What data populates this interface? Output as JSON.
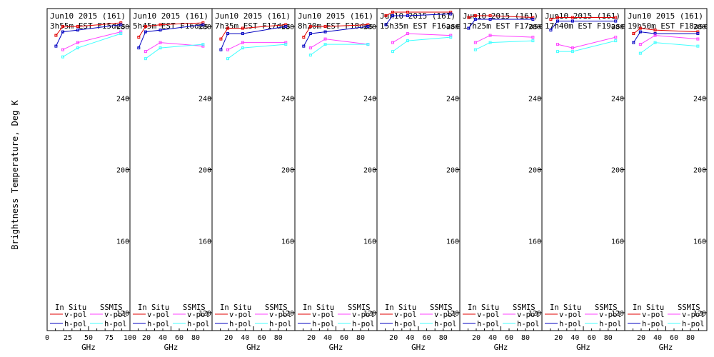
{
  "chart_data": {
    "type": "line",
    "ylabel": "Brightness Temperature, Deg K",
    "xlabel": "GHz",
    "xlim": [
      0,
      100
    ],
    "ylim": [
      110,
      290
    ],
    "yticks": [
      120,
      160,
      200,
      240,
      280
    ],
    "xticks": [
      0,
      25,
      50,
      75,
      100
    ],
    "xticks_all": [
      0,
      10,
      20,
      30,
      40,
      50,
      60,
      70,
      80,
      90,
      100
    ],
    "first_panel_x_tick_labels": [
      "0",
      "25",
      "50",
      "75",
      "100"
    ],
    "x_tick_labels": [
      "20",
      "40",
      "60",
      "80"
    ],
    "x_tick_label_values": [
      20,
      40,
      60,
      80
    ],
    "legend_titles": {
      "insitu": "In Situ",
      "ssmis": "SSMIS"
    },
    "legend_entries": {
      "v": "v-pol",
      "h": "h-pol"
    },
    "colors": {
      "insitu_v": "#e00000",
      "insitu_h": "#0000c0",
      "ssmis_v": "#ff40ff",
      "ssmis_h": "#40ffff"
    },
    "frequencies": [
      10.7,
      19,
      37,
      89
    ],
    "panels": [
      {
        "date": "Jun10 2015 (161)",
        "time": "3h55m EST F15des",
        "series": [
          {
            "name": "In Situ v-pol",
            "x": [
              10.7,
              19,
              37,
              89
            ],
            "y": [
              275,
              280,
              280,
              282
            ]
          },
          {
            "name": "In Situ h-pol",
            "x": [
              10.7,
              19,
              37,
              89
            ],
            "y": [
              269,
              277,
              278,
              281
            ]
          },
          {
            "name": "SSMIS v-pol",
            "x": [
              19,
              37,
              89
            ],
            "y": [
              267,
              271,
              277
            ]
          },
          {
            "name": "SSMIS h-pol",
            "x": [
              19,
              37,
              89
            ],
            "y": [
              263,
              268,
              276
            ]
          }
        ]
      },
      {
        "date": "Jun10 2015 (161)",
        "time": "5h45m EST F16des",
        "series": [
          {
            "name": "In Situ v-pol",
            "x": [
              10.7,
              19,
              37,
              89
            ],
            "y": [
              274,
              280,
              281,
              282
            ]
          },
          {
            "name": "In Situ h-pol",
            "x": [
              10.7,
              19,
              37,
              89
            ],
            "y": [
              268,
              277,
              278,
              281
            ]
          },
          {
            "name": "SSMIS v-pol",
            "x": [
              19,
              37,
              89
            ],
            "y": [
              266,
              271,
              269
            ]
          },
          {
            "name": "SSMIS h-pol",
            "x": [
              19,
              37,
              89
            ],
            "y": [
              262,
              268,
              270
            ]
          }
        ]
      },
      {
        "date": "Jun10 2015 (161)",
        "time": "7h35m EST F17des",
        "series": [
          {
            "name": "In Situ v-pol",
            "x": [
              10.7,
              19,
              37,
              89
            ],
            "y": [
              273,
              279,
              279,
              281
            ]
          },
          {
            "name": "In Situ h-pol",
            "x": [
              10.7,
              19,
              37,
              89
            ],
            "y": [
              267,
              276,
              276,
              280
            ]
          },
          {
            "name": "SSMIS v-pol",
            "x": [
              19,
              37,
              89
            ],
            "y": [
              267,
              271,
              271
            ]
          },
          {
            "name": "SSMIS h-pol",
            "x": [
              19,
              37,
              89
            ],
            "y": [
              262,
              268,
              270
            ]
          }
        ]
      },
      {
        "date": "Jun10 2015 (161)",
        "time": "8h20m EST F18des",
        "series": [
          {
            "name": "In Situ v-pol",
            "x": [
              10.7,
              19,
              37,
              89
            ],
            "y": [
              274,
              280,
              280,
              281
            ]
          },
          {
            "name": "In Situ h-pol",
            "x": [
              10.7,
              19,
              37,
              89
            ],
            "y": [
              269,
              276,
              277,
              280
            ]
          },
          {
            "name": "SSMIS v-pol",
            "x": [
              19,
              37,
              89
            ],
            "y": [
              268,
              273,
              270
            ]
          },
          {
            "name": "SSMIS h-pol",
            "x": [
              19,
              37,
              89
            ],
            "y": [
              264,
              270,
              270
            ]
          }
        ]
      },
      {
        "date": "Jun10 2015 (161)",
        "time": "15h35m EST F16asc",
        "series": [
          {
            "name": "In Situ v-pol",
            "x": [
              10.7,
              19,
              37,
              89
            ],
            "y": [
              286,
              288,
              288,
              288
            ]
          },
          {
            "name": "In Situ h-pol",
            "x": [
              10.7,
              19,
              37,
              89
            ],
            "y": [
              281,
              286,
              286,
              287
            ]
          },
          {
            "name": "SSMIS v-pol",
            "x": [
              19,
              37,
              89
            ],
            "y": [
              271,
              276,
              275
            ]
          },
          {
            "name": "SSMIS h-pol",
            "x": [
              19,
              37,
              89
            ],
            "y": [
              266,
              272,
              274
            ]
          }
        ]
      },
      {
        "date": "Jun10 2015 (161)",
        "time": "17h25m EST F17asc",
        "series": [
          {
            "name": "In Situ v-pol",
            "x": [
              10.7,
              19,
              37,
              89
            ],
            "y": [
              285,
              286,
              286,
              285
            ]
          },
          {
            "name": "In Situ h-pol",
            "x": [
              10.7,
              19,
              37,
              89
            ],
            "y": [
              279,
              284,
              284,
              284
            ]
          },
          {
            "name": "SSMIS v-pol",
            "x": [
              19,
              37,
              89
            ],
            "y": [
              271,
              275,
              274
            ]
          },
          {
            "name": "SSMIS h-pol",
            "x": [
              19,
              37,
              89
            ],
            "y": [
              267,
              271,
              272
            ]
          }
        ]
      },
      {
        "date": "Jun10 2015 (161)",
        "time": "17h40m EST F19asc",
        "series": [
          {
            "name": "In Situ v-pol",
            "x": [
              10.7,
              19,
              37,
              89
            ],
            "y": [
              284,
              285,
              285,
              285
            ]
          },
          {
            "name": "In Situ h-pol",
            "x": [
              10.7,
              19,
              37,
              89
            ],
            "y": [
              278,
              283,
              283,
              283
            ]
          },
          {
            "name": "SSMIS v-pol",
            "x": [
              19,
              37,
              89
            ],
            "y": [
              270,
              268,
              274
            ]
          },
          {
            "name": "SSMIS h-pol",
            "x": [
              19,
              37,
              89
            ],
            "y": [
              266,
              266,
              272
            ]
          }
        ]
      },
      {
        "date": "Jun10 2015 (161)",
        "time": "19h50m EST F18asc",
        "series": [
          {
            "name": "In Situ v-pol",
            "x": [
              10.7,
              19,
              37,
              89
            ],
            "y": [
              276,
              279,
              278,
              277
            ]
          },
          {
            "name": "In Situ h-pol",
            "x": [
              10.7,
              19,
              37,
              89
            ],
            "y": [
              271,
              277,
              276,
              276
            ]
          },
          {
            "name": "SSMIS v-pol",
            "x": [
              19,
              37,
              89
            ],
            "y": [
              270,
              275,
              273
            ]
          },
          {
            "name": "SSMIS h-pol",
            "x": [
              19,
              37,
              89
            ],
            "y": [
              265,
              271,
              269
            ]
          }
        ]
      }
    ]
  }
}
